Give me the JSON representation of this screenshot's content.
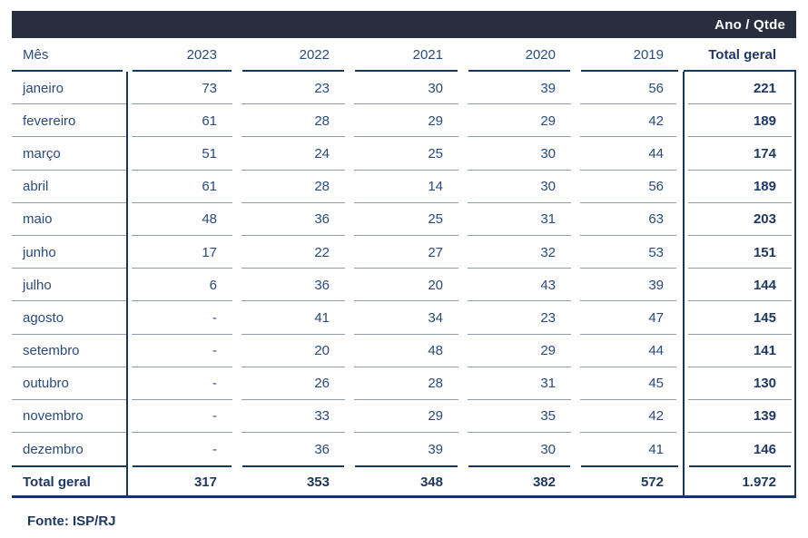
{
  "header_bar": {
    "label": "Ano / Qtde"
  },
  "table": {
    "columns": [
      "Mês",
      "2023",
      "2022",
      "2021",
      "2020",
      "2019",
      "Total geral"
    ],
    "rows": [
      {
        "month": "janeiro",
        "values": [
          "73",
          "23",
          "30",
          "39",
          "56"
        ],
        "total": "221"
      },
      {
        "month": "fevereiro",
        "values": [
          "61",
          "28",
          "29",
          "29",
          "42"
        ],
        "total": "189"
      },
      {
        "month": "março",
        "values": [
          "51",
          "24",
          "25",
          "30",
          "44"
        ],
        "total": "174"
      },
      {
        "month": "abril",
        "values": [
          "61",
          "28",
          "14",
          "30",
          "56"
        ],
        "total": "189"
      },
      {
        "month": "maio",
        "values": [
          "48",
          "36",
          "25",
          "31",
          "63"
        ],
        "total": "203"
      },
      {
        "month": "junho",
        "values": [
          "17",
          "22",
          "27",
          "32",
          "53"
        ],
        "total": "151"
      },
      {
        "month": "julho",
        "values": [
          "6",
          "36",
          "20",
          "43",
          "39"
        ],
        "total": "144"
      },
      {
        "month": "agosto",
        "values": [
          "-",
          "41",
          "34",
          "23",
          "47"
        ],
        "total": "145"
      },
      {
        "month": "setembro",
        "values": [
          "-",
          "20",
          "48",
          "29",
          "44"
        ],
        "total": "141"
      },
      {
        "month": "outubro",
        "values": [
          "-",
          "26",
          "28",
          "31",
          "45"
        ],
        "total": "130"
      },
      {
        "month": "novembro",
        "values": [
          "-",
          "33",
          "29",
          "35",
          "42"
        ],
        "total": "139"
      },
      {
        "month": "dezembro",
        "values": [
          "-",
          "36",
          "39",
          "30",
          "41"
        ],
        "total": "146"
      }
    ],
    "footer_row": {
      "label": "Total geral",
      "values": [
        "317",
        "353",
        "348",
        "382",
        "572"
      ],
      "total": "1.972"
    }
  },
  "source": {
    "label": "Fonte: ISP/RJ"
  },
  "colors": {
    "header_bar_bg": "#282e3e",
    "header_bar_text": "#ffffff",
    "text_regular": "#2a4a7c",
    "text_bold": "#1f3864",
    "line_navy": "#16365d",
    "line_light": "#919cab",
    "background": "#ffffff"
  },
  "chart_data": {
    "type": "table",
    "title": "Ano / Qtde",
    "row_dimension": "Mês",
    "categories": [
      "janeiro",
      "fevereiro",
      "março",
      "abril",
      "maio",
      "junho",
      "julho",
      "agosto",
      "setembro",
      "outubro",
      "novembro",
      "dezembro"
    ],
    "series": [
      {
        "name": "2023",
        "values": [
          73,
          61,
          51,
          61,
          48,
          17,
          6,
          null,
          null,
          null,
          null,
          null
        ],
        "total": 317
      },
      {
        "name": "2022",
        "values": [
          23,
          28,
          24,
          28,
          36,
          22,
          36,
          41,
          20,
          26,
          33,
          36
        ],
        "total": 353
      },
      {
        "name": "2021",
        "values": [
          30,
          29,
          25,
          14,
          25,
          27,
          20,
          34,
          48,
          28,
          29,
          39
        ],
        "total": 348
      },
      {
        "name": "2020",
        "values": [
          39,
          29,
          30,
          30,
          31,
          32,
          43,
          23,
          29,
          31,
          35,
          30
        ],
        "total": 382
      },
      {
        "name": "2019",
        "values": [
          56,
          42,
          44,
          56,
          63,
          53,
          39,
          47,
          44,
          45,
          42,
          41
        ],
        "total": 572
      }
    ],
    "row_totals": [
      221,
      189,
      174,
      189,
      203,
      151,
      144,
      145,
      141,
      130,
      139,
      146
    ],
    "grand_total": 1972,
    "source": "Fonte: ISP/RJ"
  }
}
